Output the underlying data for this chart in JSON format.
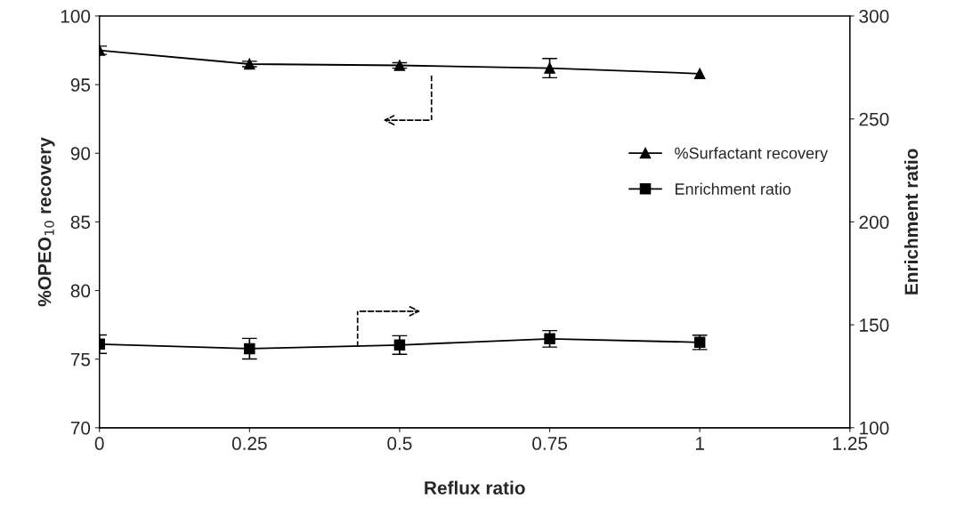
{
  "chart_data": {
    "type": "line",
    "xlabel": "Reflux ratio",
    "ylabel": "%OPEO$_{10}$ recovery",
    "y2label": "Enrichment ratio",
    "x": [
      0,
      0.25,
      0.5,
      0.75,
      1
    ],
    "series": [
      {
        "name": "%Surfactant recovery",
        "color": "#000000",
        "marker": "triangle",
        "values": [
          97.5,
          96.5,
          96.4,
          96.2,
          95.8
        ],
        "errors": [
          0.3,
          0.2,
          0.2,
          0.7,
          null
        ]
      },
      {
        "name": "Enrichment ratio",
        "color": "#000000",
        "marker": "square",
        "axis": "y2",
        "values": [
          140.6,
          138.4,
          140.2,
          143.2,
          141.5
        ],
        "errors": [
          4.5,
          5,
          4.5,
          4,
          3.5
        ]
      }
    ],
    "xlim": [
      0,
      1.25
    ],
    "xticks": [
      0,
      0.25,
      0.5,
      0.75,
      1,
      1.25
    ],
    "ylim": [
      70,
      100
    ],
    "yticks": [
      70,
      75,
      80,
      85,
      90,
      95,
      100
    ],
    "y2lim": [
      100,
      300
    ],
    "y2ticks": [
      100,
      150,
      200,
      250,
      300
    ],
    "grid": false,
    "legend": "right",
    "line_style": "solid"
  }
}
